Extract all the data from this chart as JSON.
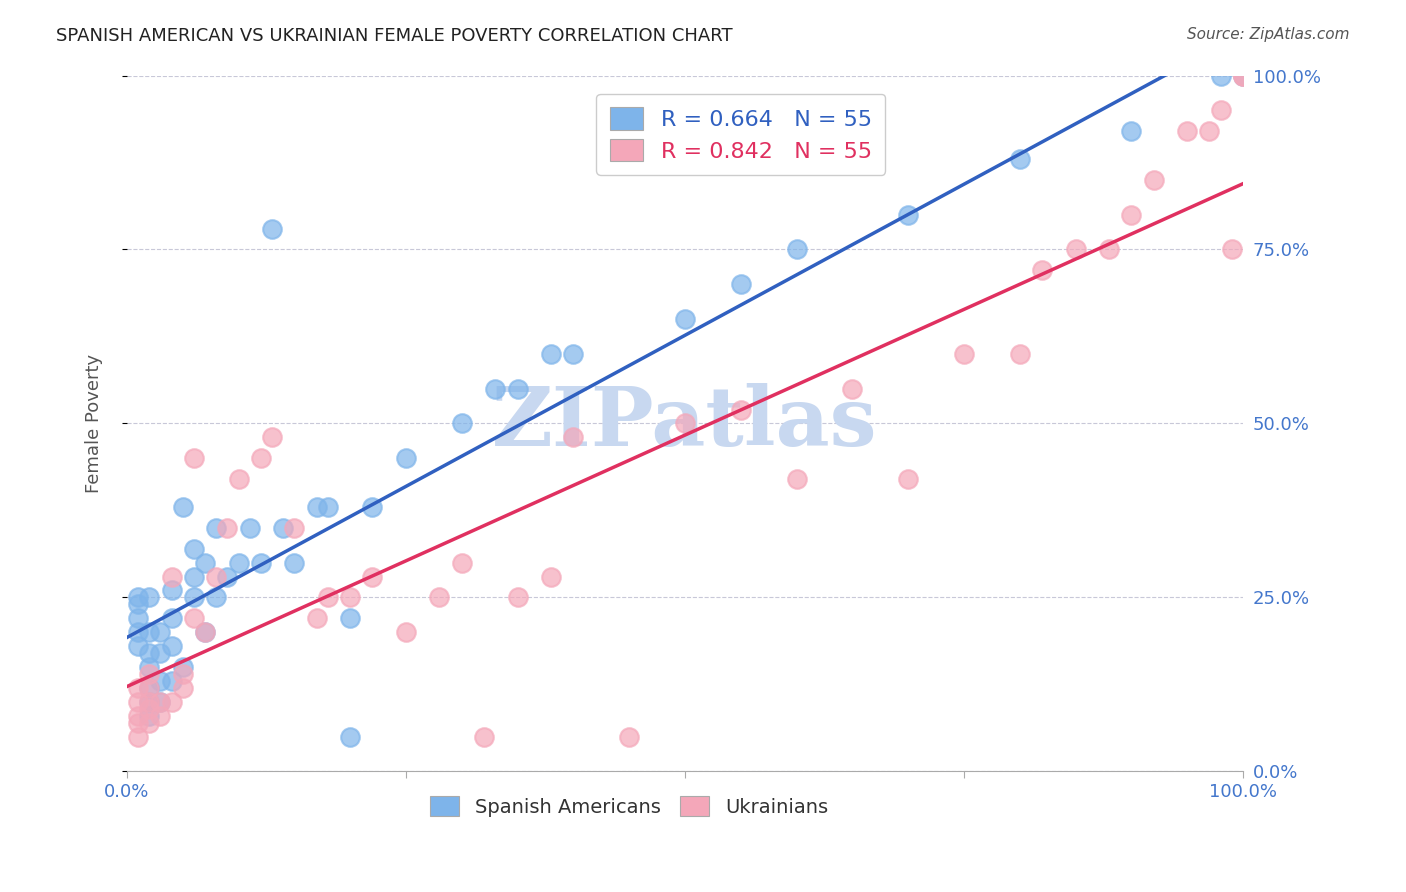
{
  "title": "SPANISH AMERICAN VS UKRAINIAN FEMALE POVERTY CORRELATION CHART",
  "source": "Source: ZipAtlas.com",
  "ylabel": "Female Poverty",
  "xlim": [
    0,
    1
  ],
  "ylim": [
    0,
    1
  ],
  "blue_color": "#7EB4EA",
  "pink_color": "#F4A7B9",
  "blue_line_color": "#3060C0",
  "pink_line_color": "#E03060",
  "blue_r": 0.664,
  "pink_r": 0.842,
  "n": 55,
  "watermark": "ZIPatlas",
  "watermark_color": "#C8D8F0",
  "grid_color": "#C8C8D8",
  "blue_scatter_x": [
    0.01,
    0.01,
    0.01,
    0.01,
    0.01,
    0.02,
    0.02,
    0.02,
    0.02,
    0.02,
    0.02,
    0.02,
    0.03,
    0.03,
    0.03,
    0.03,
    0.04,
    0.04,
    0.04,
    0.04,
    0.05,
    0.05,
    0.06,
    0.06,
    0.06,
    0.07,
    0.07,
    0.08,
    0.08,
    0.09,
    0.1,
    0.11,
    0.12,
    0.13,
    0.14,
    0.15,
    0.17,
    0.18,
    0.2,
    0.2,
    0.22,
    0.25,
    0.3,
    0.33,
    0.35,
    0.38,
    0.4,
    0.5,
    0.55,
    0.6,
    0.7,
    0.8,
    0.9,
    0.98,
    1.0
  ],
  "blue_scatter_y": [
    0.18,
    0.2,
    0.22,
    0.24,
    0.25,
    0.08,
    0.1,
    0.12,
    0.15,
    0.17,
    0.2,
    0.25,
    0.1,
    0.13,
    0.17,
    0.2,
    0.13,
    0.18,
    0.22,
    0.26,
    0.15,
    0.38,
    0.25,
    0.28,
    0.32,
    0.2,
    0.3,
    0.25,
    0.35,
    0.28,
    0.3,
    0.35,
    0.3,
    0.78,
    0.35,
    0.3,
    0.38,
    0.38,
    0.05,
    0.22,
    0.38,
    0.45,
    0.5,
    0.55,
    0.55,
    0.6,
    0.6,
    0.65,
    0.7,
    0.75,
    0.8,
    0.88,
    0.92,
    1.0,
    1.0
  ],
  "pink_scatter_x": [
    0.01,
    0.01,
    0.01,
    0.01,
    0.01,
    0.02,
    0.02,
    0.02,
    0.02,
    0.02,
    0.03,
    0.03,
    0.04,
    0.04,
    0.05,
    0.05,
    0.06,
    0.06,
    0.07,
    0.08,
    0.09,
    0.1,
    0.12,
    0.13,
    0.15,
    0.17,
    0.18,
    0.2,
    0.22,
    0.25,
    0.28,
    0.3,
    0.32,
    0.35,
    0.38,
    0.4,
    0.45,
    0.5,
    0.55,
    0.6,
    0.65,
    0.7,
    0.75,
    0.8,
    0.82,
    0.85,
    0.88,
    0.9,
    0.92,
    0.95,
    0.97,
    0.98,
    0.99,
    1.0,
    1.0
  ],
  "pink_scatter_y": [
    0.05,
    0.07,
    0.08,
    0.1,
    0.12,
    0.07,
    0.09,
    0.1,
    0.12,
    0.14,
    0.08,
    0.1,
    0.1,
    0.28,
    0.12,
    0.14,
    0.22,
    0.45,
    0.2,
    0.28,
    0.35,
    0.42,
    0.45,
    0.48,
    0.35,
    0.22,
    0.25,
    0.25,
    0.28,
    0.2,
    0.25,
    0.3,
    0.05,
    0.25,
    0.28,
    0.48,
    0.05,
    0.5,
    0.52,
    0.42,
    0.55,
    0.42,
    0.6,
    0.6,
    0.72,
    0.75,
    0.75,
    0.8,
    0.85,
    0.92,
    0.92,
    0.95,
    0.75,
    1.0,
    1.0
  ]
}
